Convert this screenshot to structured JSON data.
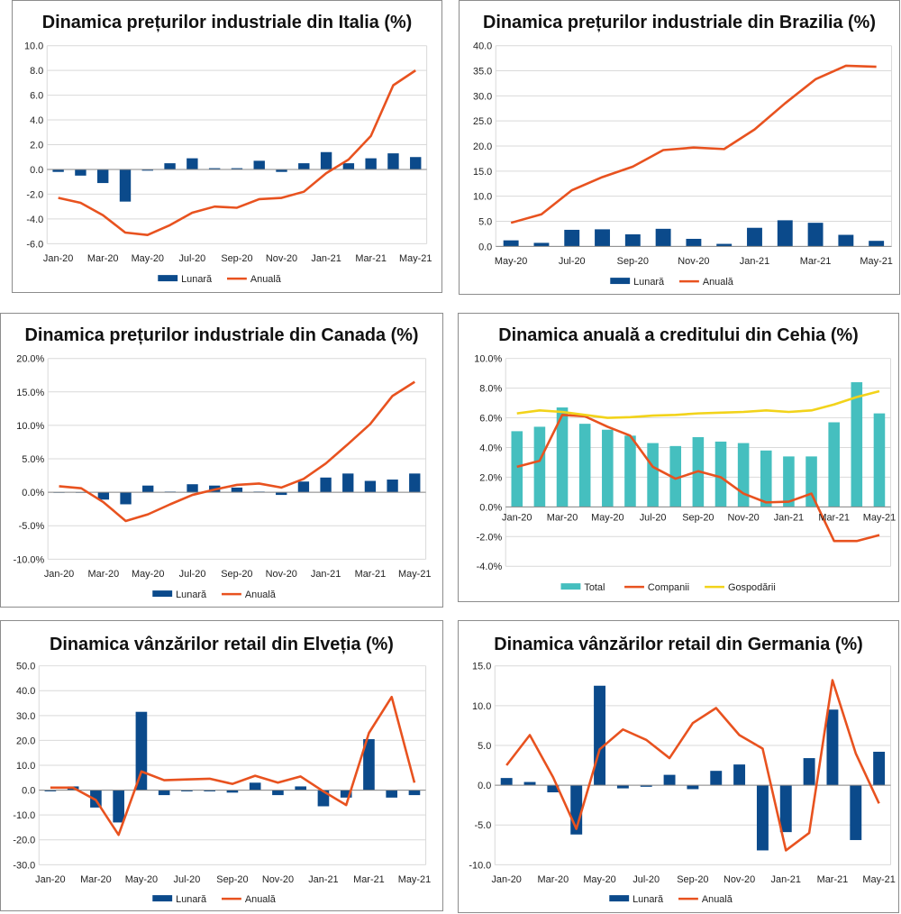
{
  "chart_data": [
    {
      "type": "bar+line",
      "title": "Dinamica prețurilor industriale din Italia (%)",
      "categories": [
        "Jan-20",
        "Feb-20",
        "Mar-20",
        "Apr-20",
        "May-20",
        "Jun-20",
        "Jul-20",
        "Aug-20",
        "Sep-20",
        "Oct-20",
        "Nov-20",
        "Dec-20",
        "Jan-21",
        "Feb-21",
        "Mar-21",
        "Apr-21",
        "May-21"
      ],
      "x_tick_labels": [
        "Jan-20",
        "Mar-20",
        "May-20",
        "Jul-20",
        "Sep-20",
        "Nov-20",
        "Jan-21",
        "Mar-21",
        "May-21"
      ],
      "ylim": [
        -6,
        10
      ],
      "ytick_step": 2,
      "ytick_decimals": 1,
      "ytick_suffix": "",
      "series": [
        {
          "name": "Lunară",
          "kind": "bar",
          "color": "#0b4a8b",
          "values": [
            -0.2,
            -0.5,
            -1.1,
            -2.6,
            -0.1,
            0.5,
            0.9,
            0.1,
            0.1,
            0.7,
            -0.2,
            0.5,
            1.4,
            0.5,
            0.9,
            1.3,
            1.0
          ]
        },
        {
          "name": "Anuală",
          "kind": "line",
          "color": "#e8521f",
          "values": [
            -2.3,
            -2.7,
            -3.7,
            -5.1,
            -5.3,
            -4.5,
            -3.5,
            -3.0,
            -3.1,
            -2.4,
            -2.3,
            -1.8,
            -0.3,
            0.8,
            2.7,
            6.8,
            8.0
          ]
        }
      ]
    },
    {
      "type": "bar+line",
      "title": "Dinamica prețurilor industriale din Brazilia (%)",
      "categories": [
        "May-20",
        "Jun-20",
        "Jul-20",
        "Aug-20",
        "Sep-20",
        "Oct-20",
        "Nov-20",
        "Dec-20",
        "Jan-21",
        "Feb-21",
        "Mar-21",
        "Apr-21",
        "May-21"
      ],
      "x_tick_labels": [
        "May-20",
        "Jul-20",
        "Sep-20",
        "Nov-20",
        "Jan-21",
        "Mar-21",
        "May-21"
      ],
      "ylim": [
        0,
        40
      ],
      "ytick_step": 5,
      "ytick_decimals": 1,
      "ytick_suffix": "",
      "series": [
        {
          "name": "Lunară",
          "kind": "bar",
          "color": "#0b4a8b",
          "values": [
            1.2,
            0.7,
            3.3,
            3.4,
            2.4,
            3.5,
            1.5,
            0.5,
            3.7,
            5.2,
            4.7,
            2.3,
            1.1
          ]
        },
        {
          "name": "Anuală",
          "kind": "line",
          "color": "#e8521f",
          "values": [
            4.7,
            6.4,
            11.2,
            13.8,
            15.9,
            19.2,
            19.7,
            19.4,
            23.3,
            28.5,
            33.3,
            36.0,
            35.8
          ]
        }
      ]
    },
    {
      "type": "bar+line",
      "title": "Dinamica prețurilor industriale din Canada (%)",
      "categories": [
        "Jan-20",
        "Feb-20",
        "Mar-20",
        "Apr-20",
        "May-20",
        "Jun-20",
        "Jul-20",
        "Aug-20",
        "Sep-20",
        "Oct-20",
        "Nov-20",
        "Dec-20",
        "Jan-21",
        "Feb-21",
        "Mar-21",
        "Apr-21",
        "May-21"
      ],
      "x_tick_labels": [
        "Jan-20",
        "Mar-20",
        "May-20",
        "Jul-20",
        "Sep-20",
        "Nov-20",
        "Jan-21",
        "Mar-21",
        "May-21"
      ],
      "ylim": [
        -10,
        20
      ],
      "ytick_step": 5,
      "ytick_decimals": 1,
      "ytick_suffix": "%",
      "series": [
        {
          "name": "Lunară",
          "kind": "bar",
          "color": "#0b4a8b",
          "values": [
            0.0,
            0.0,
            -1.1,
            -1.8,
            1.0,
            0.1,
            1.2,
            1.0,
            0.7,
            0.1,
            -0.4,
            1.6,
            2.2,
            2.8,
            1.7,
            1.9,
            2.8
          ]
        },
        {
          "name": "Anuală",
          "kind": "line",
          "color": "#e8521f",
          "values": [
            0.9,
            0.6,
            -1.5,
            -4.3,
            -3.3,
            -1.8,
            -0.4,
            0.4,
            1.1,
            1.3,
            0.7,
            2.0,
            4.3,
            7.2,
            10.2,
            14.4,
            16.5
          ]
        }
      ]
    },
    {
      "type": "bar+line",
      "title": "Dinamica anuală a creditului din Cehia (%)",
      "categories": [
        "Jan-20",
        "Feb-20",
        "Mar-20",
        "Apr-20",
        "May-20",
        "Jun-20",
        "Jul-20",
        "Aug-20",
        "Sep-20",
        "Oct-20",
        "Nov-20",
        "Dec-20",
        "Jan-21",
        "Feb-21",
        "Mar-21",
        "Apr-21",
        "May-21"
      ],
      "x_tick_labels": [
        "Jan-20",
        "Mar-20",
        "May-20",
        "Jul-20",
        "Sep-20",
        "Nov-20",
        "Jan-21",
        "Mar-21",
        "May-21"
      ],
      "ylim": [
        -4,
        10
      ],
      "ytick_step": 2,
      "ytick_decimals": 1,
      "ytick_suffix": "%",
      "series": [
        {
          "name": "Total",
          "kind": "bar",
          "color": "#45bfbf",
          "values": [
            5.1,
            5.4,
            6.7,
            5.6,
            5.2,
            4.8,
            4.3,
            4.1,
            4.7,
            4.4,
            4.3,
            3.8,
            3.4,
            3.4,
            5.7,
            8.4,
            6.3
          ]
        },
        {
          "name": "Companii",
          "kind": "line",
          "color": "#e8521f",
          "values": [
            2.7,
            3.1,
            6.2,
            6.1,
            5.4,
            4.8,
            2.7,
            1.9,
            2.4,
            2.0,
            0.9,
            0.3,
            0.35,
            0.9,
            -2.3,
            -2.3,
            -1.9
          ]
        },
        {
          "name": "Gospodării",
          "kind": "line",
          "color": "#f2d31a",
          "values": [
            6.3,
            6.5,
            6.4,
            6.2,
            6.0,
            6.05,
            6.15,
            6.2,
            6.3,
            6.35,
            6.4,
            6.5,
            6.4,
            6.5,
            6.9,
            7.4,
            7.8
          ]
        }
      ]
    },
    {
      "type": "bar+line",
      "title": "Dinamica vânzărilor retail din Elveția (%)",
      "categories": [
        "Jan-20",
        "Feb-20",
        "Mar-20",
        "Apr-20",
        "May-20",
        "Jun-20",
        "Jul-20",
        "Aug-20",
        "Sep-20",
        "Oct-20",
        "Nov-20",
        "Dec-20",
        "Jan-21",
        "Feb-21",
        "Mar-21",
        "Apr-21",
        "May-21"
      ],
      "x_tick_labels": [
        "Jan-20",
        "Mar-20",
        "May-20",
        "Jul-20",
        "Sep-20",
        "Nov-20",
        "Jan-21",
        "Mar-21",
        "May-21"
      ],
      "ylim": [
        -30,
        50
      ],
      "ytick_step": 10,
      "ytick_decimals": 1,
      "ytick_suffix": "",
      "series": [
        {
          "name": "Lunară",
          "kind": "bar",
          "color": "#0b4a8b",
          "values": [
            -0.5,
            1.5,
            -7.0,
            -13.0,
            31.5,
            -2.0,
            -0.5,
            -0.5,
            -1.0,
            3.0,
            -2.0,
            1.5,
            -6.5,
            -3.0,
            20.5,
            -3.0,
            -2.0
          ]
        },
        {
          "name": "Anuală",
          "kind": "line",
          "color": "#e8521f",
          "values": [
            1.0,
            1.0,
            -4.0,
            -18.0,
            7.5,
            4.0,
            4.3,
            4.6,
            2.5,
            5.8,
            3.0,
            5.5,
            -0.5,
            -6.0,
            23.0,
            37.5,
            3.0
          ]
        }
      ]
    },
    {
      "type": "bar+line",
      "title": "Dinamica vânzărilor retail din Germania (%)",
      "categories": [
        "Jan-20",
        "Feb-20",
        "Mar-20",
        "Apr-20",
        "May-20",
        "Jun-20",
        "Jul-20",
        "Aug-20",
        "Sep-20",
        "Oct-20",
        "Nov-20",
        "Dec-20",
        "Jan-21",
        "Feb-21",
        "Mar-21",
        "Apr-21",
        "May-21"
      ],
      "x_tick_labels": [
        "Jan-20",
        "Mar-20",
        "May-20",
        "Jul-20",
        "Sep-20",
        "Nov-20",
        "Jan-21",
        "Mar-21",
        "May-21"
      ],
      "ylim": [
        -10,
        15
      ],
      "ytick_step": 5,
      "ytick_decimals": 1,
      "ytick_suffix": "",
      "series": [
        {
          "name": "Lunară",
          "kind": "bar",
          "color": "#0b4a8b",
          "values": [
            0.9,
            0.4,
            -0.9,
            -6.2,
            12.5,
            -0.4,
            -0.2,
            1.3,
            -0.5,
            1.8,
            2.6,
            -8.2,
            -5.9,
            3.4,
            9.5,
            -6.9,
            4.2
          ]
        },
        {
          "name": "Anuală",
          "kind": "line",
          "color": "#e8521f",
          "values": [
            2.5,
            6.3,
            1.0,
            -5.5,
            4.5,
            7.0,
            5.7,
            3.4,
            7.8,
            9.7,
            6.3,
            4.6,
            -8.2,
            -6.0,
            13.2,
            4.0,
            -2.3
          ]
        }
      ]
    }
  ]
}
